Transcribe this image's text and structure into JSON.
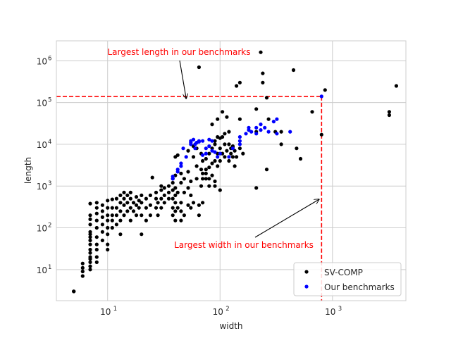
{
  "chart_data": {
    "type": "scatter",
    "xlabel": "width",
    "ylabel": "length",
    "xscale": "log",
    "yscale": "log",
    "xlim": [
      3.5,
      4500
    ],
    "ylim": [
      1.8,
      3000000
    ],
    "grid": true,
    "xticks": [
      {
        "value": 10,
        "base": "10",
        "exp": "1"
      },
      {
        "value": 100,
        "base": "10",
        "exp": "2"
      },
      {
        "value": 1000,
        "base": "10",
        "exp": "3"
      }
    ],
    "yticks": [
      {
        "value": 10,
        "base": "10",
        "exp": "1"
      },
      {
        "value": 100,
        "base": "10",
        "exp": "2"
      },
      {
        "value": 1000,
        "base": "10",
        "exp": "3"
      },
      {
        "value": 10000,
        "base": "10",
        "exp": "4"
      },
      {
        "value": 100000,
        "base": "10",
        "exp": "5"
      },
      {
        "value": 1000000,
        "base": "10",
        "exp": "6"
      }
    ],
    "legend": {
      "placement": "lower-right",
      "entries": [
        {
          "label": "SV-COMP",
          "color": "#000000"
        },
        {
          "label": "Our benchmarks",
          "color": "#0000ff"
        }
      ]
    },
    "reference_lines": {
      "max_length": 140000,
      "max_width": 800,
      "color": "#ff0000",
      "style": "dashed"
    },
    "annotations": [
      {
        "text": "Largest length in our benchmarks",
        "target": [
          50,
          125000
        ]
      },
      {
        "text": "Largest width in our benchmarks",
        "target": [
          760,
          480
        ]
      }
    ],
    "series": [
      {
        "name": "SV-COMP",
        "color": "#000000",
        "points": [
          [
            5,
            3
          ],
          [
            5,
            3
          ],
          [
            5,
            3
          ],
          [
            6,
            7
          ],
          [
            6,
            9
          ],
          [
            6,
            11
          ],
          [
            6,
            14
          ],
          [
            7,
            10
          ],
          [
            7,
            12
          ],
          [
            7,
            15
          ],
          [
            7,
            18
          ],
          [
            7,
            20
          ],
          [
            7,
            25
          ],
          [
            7,
            30
          ],
          [
            7,
            40
          ],
          [
            7,
            50
          ],
          [
            7,
            60
          ],
          [
            7,
            70
          ],
          [
            7,
            80
          ],
          [
            7,
            120
          ],
          [
            7,
            160
          ],
          [
            7,
            200
          ],
          [
            7,
            380
          ],
          [
            8,
            15
          ],
          [
            8,
            20
          ],
          [
            8,
            30
          ],
          [
            8,
            40
          ],
          [
            8,
            60
          ],
          [
            8,
            100
          ],
          [
            8,
            150
          ],
          [
            8,
            220
          ],
          [
            8,
            300
          ],
          [
            8,
            400
          ],
          [
            9,
            50
          ],
          [
            9,
            80
          ],
          [
            9,
            120
          ],
          [
            9,
            180
          ],
          [
            9,
            250
          ],
          [
            9,
            350
          ],
          [
            10,
            30
          ],
          [
            10,
            40
          ],
          [
            10,
            70
          ],
          [
            10,
            100
          ],
          [
            10,
            150
          ],
          [
            10,
            200
          ],
          [
            10,
            300
          ],
          [
            10,
            450
          ],
          [
            11,
            100
          ],
          [
            11,
            150
          ],
          [
            11,
            200
          ],
          [
            11,
            300
          ],
          [
            11,
            480
          ],
          [
            12,
            120
          ],
          [
            12,
            200
          ],
          [
            12,
            300
          ],
          [
            12,
            500
          ],
          [
            13,
            70
          ],
          [
            13,
            150
          ],
          [
            13,
            250
          ],
          [
            13,
            400
          ],
          [
            13,
            600
          ],
          [
            14,
            200
          ],
          [
            14,
            350
          ],
          [
            14,
            500
          ],
          [
            14,
            700
          ],
          [
            15,
            250
          ],
          [
            15,
            400
          ],
          [
            15,
            600
          ],
          [
            16,
            150
          ],
          [
            16,
            300
          ],
          [
            16,
            500
          ],
          [
            16,
            700
          ],
          [
            17,
            250
          ],
          [
            17,
            400
          ],
          [
            18,
            200
          ],
          [
            18,
            350
          ],
          [
            18,
            550
          ],
          [
            19,
            300
          ],
          [
            19,
            450
          ],
          [
            20,
            70
          ],
          [
            20,
            200
          ],
          [
            20,
            400
          ],
          [
            20,
            600
          ],
          [
            22,
            150
          ],
          [
            22,
            300
          ],
          [
            22,
            500
          ],
          [
            24,
            200
          ],
          [
            24,
            350
          ],
          [
            24,
            600
          ],
          [
            25,
            1600
          ],
          [
            27,
            300
          ],
          [
            27,
            500
          ],
          [
            27,
            700
          ],
          [
            28,
            200
          ],
          [
            28,
            400
          ],
          [
            30,
            300
          ],
          [
            30,
            500
          ],
          [
            30,
            800
          ],
          [
            30,
            1000
          ],
          [
            32,
            400
          ],
          [
            32,
            600
          ],
          [
            32,
            900
          ],
          [
            35,
            500
          ],
          [
            35,
            700
          ],
          [
            35,
            1000
          ],
          [
            38,
            200
          ],
          [
            38,
            300
          ],
          [
            38,
            500
          ],
          [
            38,
            800
          ],
          [
            38,
            1200
          ],
          [
            38,
            1500
          ],
          [
            40,
            150
          ],
          [
            40,
            250
          ],
          [
            40,
            400
          ],
          [
            40,
            600
          ],
          [
            40,
            900
          ],
          [
            40,
            1800
          ],
          [
            40,
            5000
          ],
          [
            42,
            5500
          ],
          [
            42,
            300
          ],
          [
            42,
            700
          ],
          [
            45,
            150
          ],
          [
            45,
            250
          ],
          [
            45,
            400
          ],
          [
            45,
            1200
          ],
          [
            45,
            2000
          ],
          [
            48,
            200
          ],
          [
            48,
            1500
          ],
          [
            48,
            700
          ],
          [
            52,
            350
          ],
          [
            52,
            900
          ],
          [
            52,
            2200
          ],
          [
            52,
            7000
          ],
          [
            55,
            300
          ],
          [
            55,
            600
          ],
          [
            55,
            1300
          ],
          [
            58,
            400
          ],
          [
            58,
            5000
          ],
          [
            58,
            9000
          ],
          [
            62,
            1500
          ],
          [
            62,
            3000
          ],
          [
            62,
            8000
          ],
          [
            65,
            200
          ],
          [
            65,
            350
          ],
          [
            65,
            700000
          ],
          [
            68,
            1000
          ],
          [
            68,
            2500
          ],
          [
            68,
            6000
          ],
          [
            70,
            400
          ],
          [
            70,
            1500
          ],
          [
            70,
            2000
          ],
          [
            70,
            4000
          ],
          [
            75,
            1500
          ],
          [
            75,
            2000
          ],
          [
            75,
            2500
          ],
          [
            75,
            4500
          ],
          [
            80,
            1000
          ],
          [
            80,
            1500
          ],
          [
            80,
            2800
          ],
          [
            80,
            6000
          ],
          [
            85,
            1800
          ],
          [
            85,
            3500
          ],
          [
            85,
            8000
          ],
          [
            85,
            30000
          ],
          [
            90,
            1000
          ],
          [
            90,
            1300
          ],
          [
            90,
            4000
          ],
          [
            90,
            10000
          ],
          [
            90,
            12000
          ],
          [
            95,
            3000
          ],
          [
            95,
            6000
          ],
          [
            95,
            15000
          ],
          [
            95,
            40000
          ],
          [
            100,
            800
          ],
          [
            100,
            4000
          ],
          [
            100,
            8000
          ],
          [
            100,
            14000
          ],
          [
            105,
            60000
          ],
          [
            105,
            6000
          ],
          [
            105,
            15000
          ],
          [
            110,
            5000
          ],
          [
            110,
            10000
          ],
          [
            110,
            18000
          ],
          [
            115,
            45000
          ],
          [
            115,
            7000
          ],
          [
            120,
            4000
          ],
          [
            120,
            10000
          ],
          [
            120,
            20000
          ],
          [
            125,
            6000
          ],
          [
            125,
            8000
          ],
          [
            130,
            5000
          ],
          [
            130,
            9000
          ],
          [
            130,
            8500
          ],
          [
            135,
            7000
          ],
          [
            135,
            3000
          ],
          [
            140,
            5000
          ],
          [
            140,
            250000
          ],
          [
            150,
            8000
          ],
          [
            150,
            40000
          ],
          [
            150,
            300000
          ],
          [
            160,
            6000
          ],
          [
            210,
            900
          ],
          [
            210,
            20000
          ],
          [
            210,
            70000
          ],
          [
            230,
            1600000
          ],
          [
            240,
            500000
          ],
          [
            240,
            300000
          ],
          [
            260,
            130000
          ],
          [
            260,
            2500
          ],
          [
            270,
            40000
          ],
          [
            310,
            20000
          ],
          [
            350,
            10000
          ],
          [
            350,
            20000
          ],
          [
            450,
            600000
          ],
          [
            480,
            8000
          ],
          [
            520,
            4500
          ],
          [
            660,
            60000
          ],
          [
            800,
            17000
          ],
          [
            860,
            200000
          ],
          [
            3200,
            60000
          ],
          [
            3200,
            50000
          ],
          [
            3700,
            250000
          ]
        ]
      },
      {
        "name": "Our benchmarks",
        "color": "#0000ff",
        "points": [
          [
            38,
            1700
          ],
          [
            38,
            1500
          ],
          [
            42,
            2500
          ],
          [
            42,
            2200
          ],
          [
            45,
            3500
          ],
          [
            45,
            3000
          ],
          [
            47,
            8000
          ],
          [
            50,
            5000
          ],
          [
            55,
            12000
          ],
          [
            55,
            11000
          ],
          [
            55,
            10000
          ],
          [
            58,
            13000
          ],
          [
            60,
            8000
          ],
          [
            60,
            10000
          ],
          [
            62,
            11000
          ],
          [
            65,
            12000
          ],
          [
            65,
            11500
          ],
          [
            70,
            5500
          ],
          [
            70,
            12000
          ],
          [
            75,
            8000
          ],
          [
            75,
            6000
          ],
          [
            80,
            13000
          ],
          [
            80,
            9000
          ],
          [
            85,
            12000
          ],
          [
            85,
            7000
          ],
          [
            90,
            6500
          ],
          [
            95,
            5000
          ],
          [
            100,
            6000
          ],
          [
            120,
            5000
          ],
          [
            130,
            8000
          ],
          [
            150,
            15000
          ],
          [
            150,
            12000
          ],
          [
            150,
            10000
          ],
          [
            170,
            18000
          ],
          [
            180,
            25000
          ],
          [
            180,
            22000
          ],
          [
            190,
            20000
          ],
          [
            210,
            18000
          ],
          [
            210,
            25000
          ],
          [
            230,
            22000
          ],
          [
            230,
            30000
          ],
          [
            250,
            25000
          ],
          [
            270,
            20000
          ],
          [
            300,
            35000
          ],
          [
            320,
            40000
          ],
          [
            320,
            18000
          ],
          [
            420,
            20000
          ],
          [
            800,
            140000
          ]
        ]
      }
    ]
  }
}
